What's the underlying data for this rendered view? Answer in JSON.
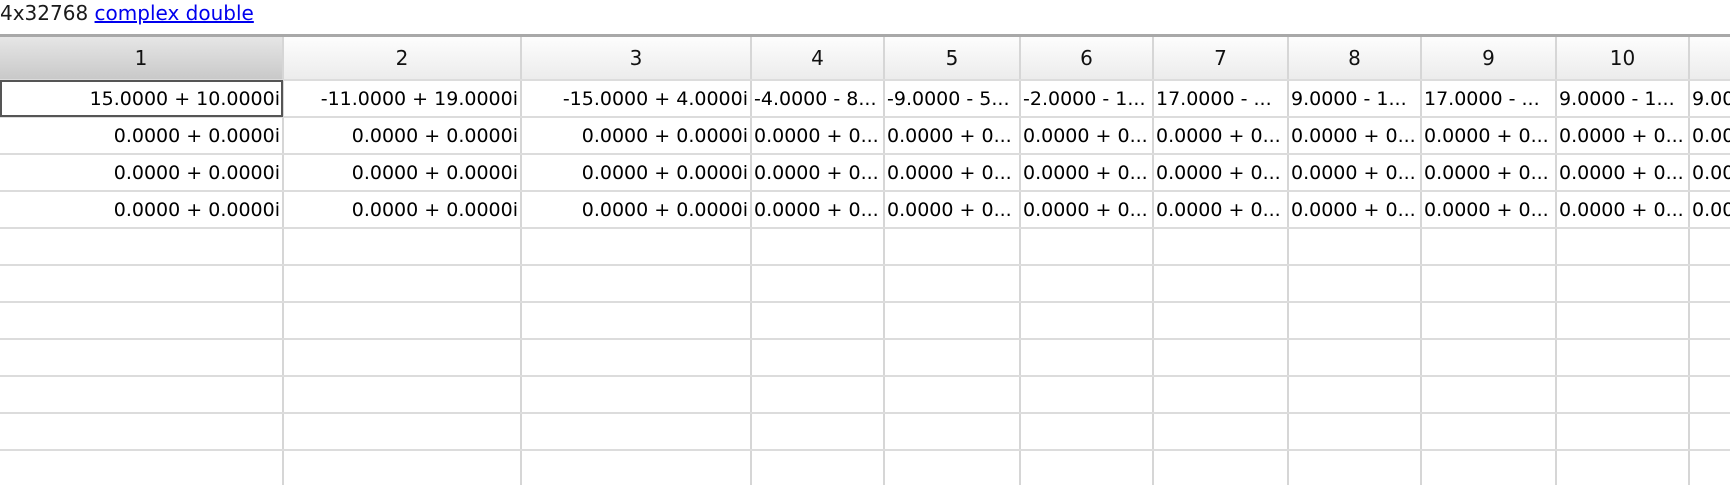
{
  "header": {
    "dimensions": "4x32768",
    "type_link": "complex double"
  },
  "grid": {
    "columns": [
      "1",
      "2",
      "3",
      "4",
      "5",
      "6",
      "7",
      "8",
      "9",
      "10",
      ""
    ],
    "rows": [
      [
        "15.0000 + 10.0000i",
        "-11.0000 + 19.0000i",
        "-15.0000 + 4.0000i",
        "-4.0000 - 8...",
        "-9.0000 - 5...",
        "-2.0000 - 1...",
        "17.0000 - ...",
        "9.0000 - 1...",
        "17.0000 - ...",
        "9.0000 - 1...",
        "9.00"
      ],
      [
        "0.0000 + 0.0000i",
        "0.0000 + 0.0000i",
        "0.0000 + 0.0000i",
        "0.0000 + 0...",
        "0.0000 + 0...",
        "0.0000 + 0...",
        "0.0000 + 0...",
        "0.0000 + 0...",
        "0.0000 + 0...",
        "0.0000 + 0...",
        "0.00"
      ],
      [
        "0.0000 + 0.0000i",
        "0.0000 + 0.0000i",
        "0.0000 + 0.0000i",
        "0.0000 + 0...",
        "0.0000 + 0...",
        "0.0000 + 0...",
        "0.0000 + 0...",
        "0.0000 + 0...",
        "0.0000 + 0...",
        "0.0000 + 0...",
        "0.00"
      ],
      [
        "0.0000 + 0.0000i",
        "0.0000 + 0.0000i",
        "0.0000 + 0.0000i",
        "0.0000 + 0...",
        "0.0000 + 0...",
        "0.0000 + 0...",
        "0.0000 + 0...",
        "0.0000 + 0...",
        "0.0000 + 0...",
        "0.0000 + 0...",
        "0.00"
      ]
    ],
    "selected_column": "1",
    "active_cell": "row 1, column 1"
  }
}
